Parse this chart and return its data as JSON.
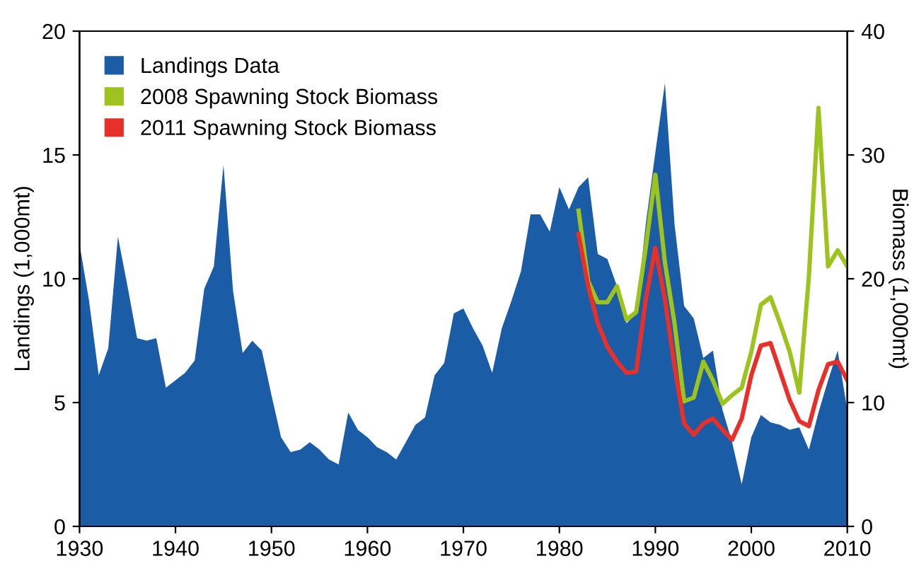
{
  "chart_data": {
    "type": "area",
    "xlabel": null,
    "ylabel": "Landings (1,000mt)",
    "y2label": "Biomass (1,000mt)",
    "xlim": [
      1930,
      2010
    ],
    "xticks": [
      1930,
      1940,
      1950,
      1960,
      1970,
      1980,
      1990,
      2000,
      2010
    ],
    "ylim": [
      0,
      20
    ],
    "yticks": [
      0,
      5,
      10,
      15,
      20
    ],
    "y2lim": [
      0,
      40
    ],
    "y2ticks": [
      0,
      10,
      20,
      30,
      40
    ],
    "grid": false,
    "legend": "top left",
    "series": [
      {
        "name": "Landings Data",
        "color": "#1a5ca6",
        "x": [
          1930,
          1931,
          1932,
          1933,
          1934,
          1935,
          1936,
          1937,
          1938,
          1939,
          1940,
          1941,
          1942,
          1943,
          1944,
          1945,
          1946,
          1947,
          1948,
          1949,
          1950,
          1951,
          1952,
          1953,
          1954,
          1955,
          1956,
          1957,
          1958,
          1959,
          1960,
          1961,
          1962,
          1963,
          1964,
          1965,
          1966,
          1967,
          1968,
          1969,
          1970,
          1971,
          1972,
          1973,
          1974,
          1975,
          1976,
          1977,
          1978,
          1979,
          1980,
          1981,
          1982,
          1983,
          1984,
          1985,
          1986,
          1987,
          1988,
          1989,
          1990,
          1991,
          1992,
          1993,
          1994,
          1995,
          1996,
          1997,
          1998,
          1999,
          2000,
          2001,
          2002,
          2003,
          2004,
          2005,
          2006,
          2007,
          2008,
          2009,
          2010
        ],
        "values": [
          11.4,
          9.1,
          6.1,
          7.2,
          11.7,
          9.7,
          7.6,
          7.5,
          7.6,
          5.6,
          5.9,
          6.2,
          6.7,
          9.6,
          10.5,
          14.6,
          9.5,
          7.0,
          7.5,
          7.1,
          5.3,
          3.6,
          3.0,
          3.1,
          3.4,
          3.1,
          2.7,
          2.5,
          4.6,
          3.9,
          3.6,
          3.2,
          3.0,
          2.7,
          3.4,
          4.1,
          4.4,
          6.1,
          6.6,
          8.6,
          8.8,
          8.0,
          7.3,
          6.2,
          8.0,
          9.1,
          10.3,
          12.6,
          12.6,
          11.9,
          13.7,
          12.8,
          13.7,
          14.1,
          11.0,
          10.8,
          9.7,
          8.2,
          8.6,
          12.2,
          15.1,
          17.9,
          12.2,
          8.9,
          8.4,
          6.8,
          7.1,
          4.7,
          3.4,
          1.7,
          3.6,
          4.5,
          4.2,
          4.1,
          3.9,
          4.0,
          3.1,
          4.6,
          5.9,
          7.1,
          4.7
        ]
      },
      {
        "name": "2008 Spawning Stock Biomass",
        "type": "line",
        "axis": "y2",
        "color": "#9cc31e",
        "x": [
          1982,
          1983,
          1984,
          1985,
          1986,
          1987,
          1988,
          1989,
          1990,
          1991,
          1992,
          1993,
          1994,
          1995,
          1996,
          1997,
          1998,
          1999,
          2000,
          2001,
          2002,
          2003,
          2004,
          2005,
          2006,
          2007,
          2008,
          2009,
          2010
        ],
        "values": [
          25.5,
          19.8,
          18.1,
          18.1,
          19.4,
          16.7,
          17.3,
          22.5,
          28.4,
          21.3,
          16.4,
          10.1,
          10.4,
          13.3,
          11.8,
          9.9,
          10.6,
          11.2,
          14.1,
          17.9,
          18.5,
          16.4,
          14.1,
          10.8,
          20.2,
          33.8,
          21.0,
          22.3,
          21.0
        ]
      },
      {
        "name": "2011 Spawning Stock Biomass",
        "type": "line",
        "axis": "y2",
        "color": "#e8302b",
        "x": [
          1982,
          1983,
          1984,
          1985,
          1986,
          1987,
          1988,
          1989,
          1990,
          1991,
          1992,
          1993,
          1994,
          1995,
          1996,
          1997,
          1998,
          1999,
          2000,
          2001,
          2002,
          2003,
          2004,
          2005,
          2006,
          2007,
          2008,
          2009,
          2010
        ],
        "values": [
          23.6,
          19.4,
          16.4,
          14.5,
          13.3,
          12.4,
          12.5,
          18.3,
          22.5,
          18.3,
          12.9,
          8.3,
          7.4,
          8.3,
          8.7,
          7.8,
          7.0,
          8.7,
          12.2,
          14.6,
          14.8,
          12.5,
          10.2,
          8.5,
          8.1,
          11.0,
          13.1,
          13.3,
          11.8
        ]
      }
    ]
  }
}
